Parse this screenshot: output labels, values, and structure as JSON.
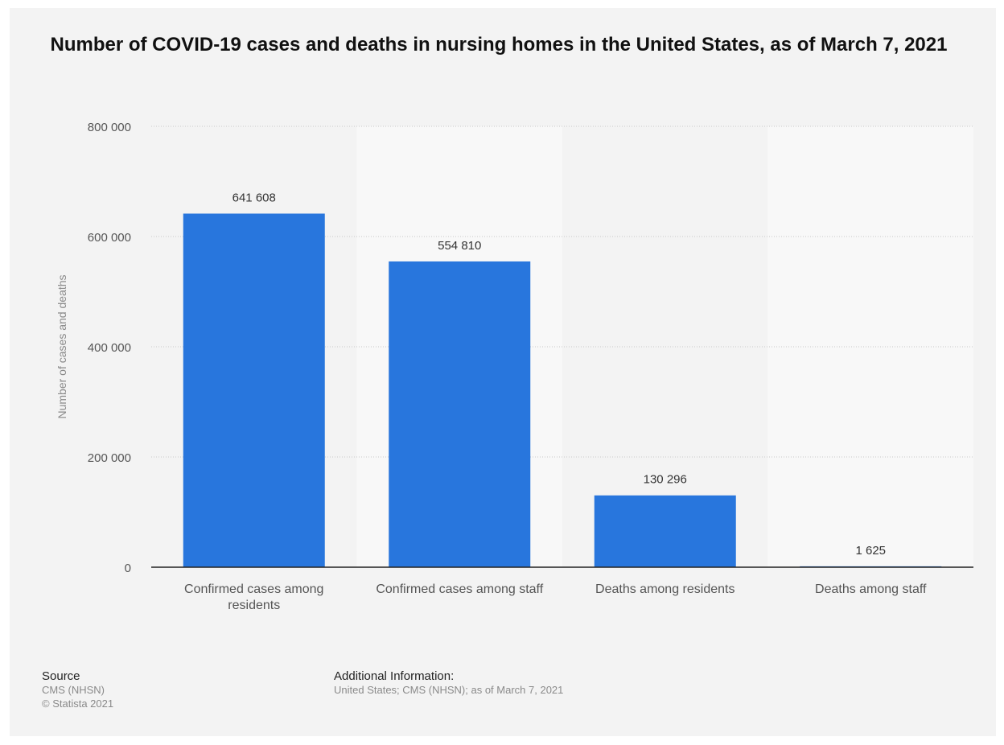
{
  "chart_data": {
    "type": "bar",
    "title": "Number of COVID-19 cases and deaths in nursing homes in the United States, as of March 7, 2021",
    "ylabel": "Number of cases and deaths",
    "xlabel": "",
    "categories": [
      "Confirmed cases among residents",
      "Confirmed cases among staff",
      "Deaths among residents",
      "Deaths among staff"
    ],
    "values": [
      641608,
      554810,
      130296,
      1625
    ],
    "value_labels": [
      "641 608",
      "554 810",
      "130 296",
      "1 625"
    ],
    "yticks": [
      0,
      200000,
      400000,
      600000,
      800000
    ],
    "ytick_labels": [
      "0",
      "200 000",
      "400 000",
      "600 000",
      "800 000"
    ],
    "ylim": [
      0,
      800000
    ],
    "grid": true,
    "legend": "none",
    "bar_color": "#2876dd"
  },
  "footer": {
    "source_heading": "Source",
    "source_lines": [
      "CMS (NHSN)",
      "© Statista 2021"
    ],
    "additional_heading": "Additional Information:",
    "additional_text": "United States; CMS (NHSN); as of March 7, 2021"
  }
}
